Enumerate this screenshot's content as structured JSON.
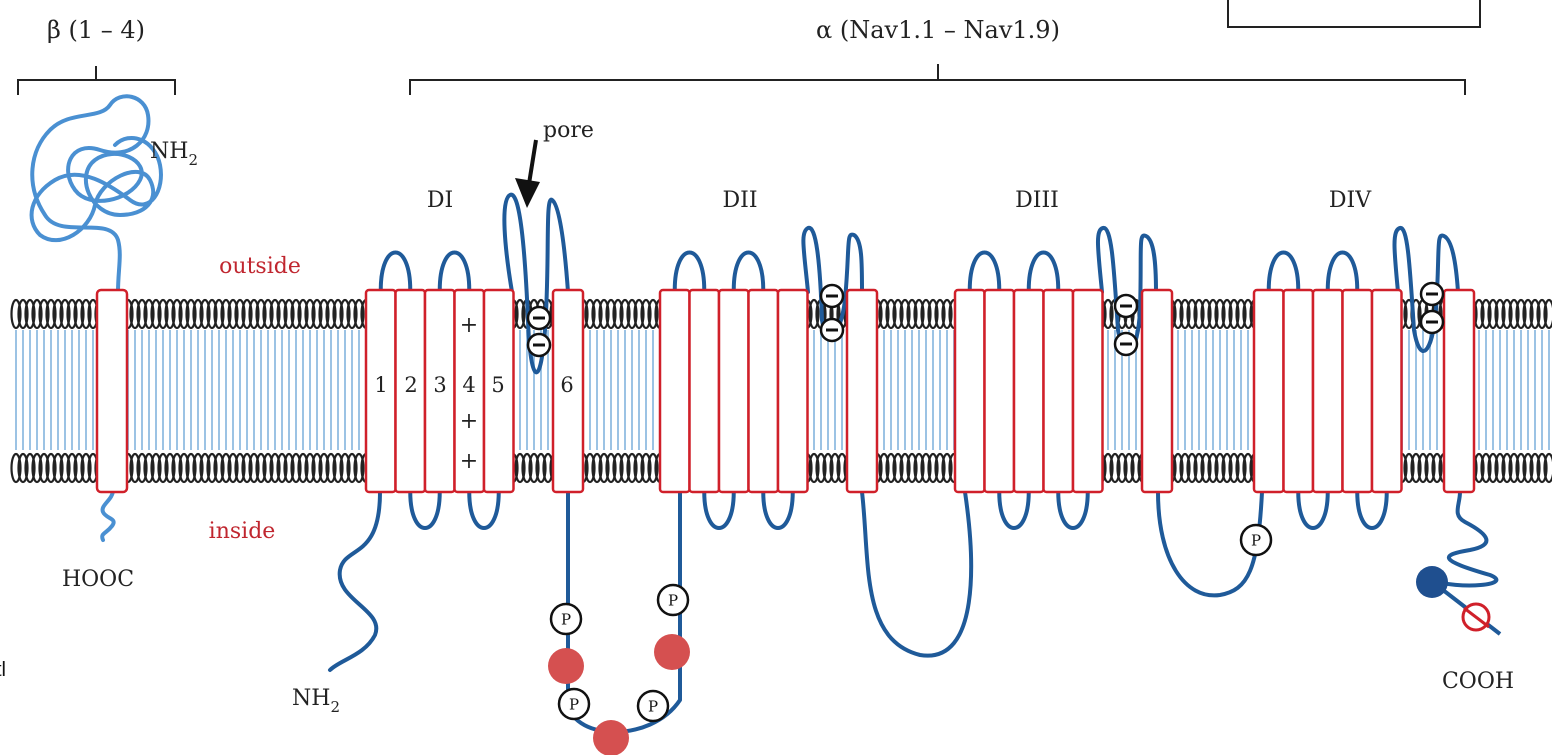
{
  "labels": {
    "beta_subunit": "β (1 – 4)",
    "alpha_subunit": "α (Nav1.1 – Nav1.9)",
    "beta_nh2": "NH",
    "beta_nh2_sub": "2",
    "beta_hooc": "HOOC",
    "outside": "outside",
    "inside": "inside",
    "pore": "pore",
    "alpha_nh2": "NH",
    "alpha_nh2_sub": "2",
    "alpha_cooh": "COOH",
    "edge_fragment": "tl"
  },
  "domains": [
    "DI",
    "DII",
    "DIII",
    "DIV"
  ],
  "segments": [
    "1",
    "2",
    "3",
    "4",
    "5",
    "6"
  ],
  "charges": {
    "plus": "+",
    "minus": "−"
  },
  "phospho": "P",
  "colors": {
    "helix_stroke": "#d0202a",
    "alpha_chain": "#1f5a99",
    "beta_chain": "#4a90d2",
    "lipid_head": "#222222",
    "lipid_tail": "#9cc3e4",
    "label_red": "#c0262f",
    "site_red": "#d55050"
  }
}
